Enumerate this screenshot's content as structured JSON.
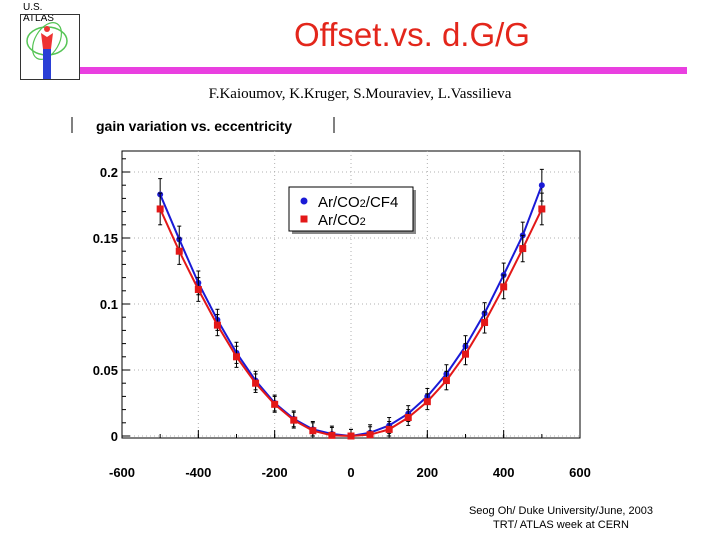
{
  "header": {
    "logo_text": "U.S. ATLAS",
    "title": "Offset.vs. d.G/G",
    "authors": "F.Kaioumov, K.Kruger, S.Mouraviev, L.Vassilieva"
  },
  "footer": {
    "line1": "Seog Oh/ Duke University/June, 2003",
    "line2": "TRT/ ATLAS week at CERN"
  },
  "colors": {
    "title": "#e3261b",
    "bar": "#e93fe0",
    "series1": "#1a1ad6",
    "series2": "#e31818"
  },
  "chart_data": {
    "type": "line",
    "title": "gain variation vs. eccentricity",
    "xlabel": "",
    "ylabel": "",
    "xlim": [
      -600,
      600
    ],
    "ylim": [
      0,
      0.22
    ],
    "x_ticks": [
      -600,
      -400,
      -200,
      0,
      200,
      400,
      600
    ],
    "x_tick_labels": [
      "-600",
      "-400",
      "-200",
      "0",
      "200",
      "400",
      "600"
    ],
    "y_ticks": [
      0,
      0.05,
      0.1,
      0.15,
      0.2
    ],
    "y_tick_labels": [
      "0",
      "0.05",
      "0.1",
      "0.15",
      "0.2"
    ],
    "grid": true,
    "legend_position": "top-right",
    "series": [
      {
        "name": "Ar/CO2/CF4",
        "legend_label": "Ar/CO",
        "legend_sub": "2",
        "legend_suffix": "/CF4",
        "marker": "circle",
        "x": [
          -500,
          -450,
          -400,
          -350,
          -300,
          -250,
          -200,
          -150,
          -100,
          -50,
          0,
          50,
          100,
          150,
          200,
          250,
          300,
          350,
          400,
          450,
          500
        ],
        "y": [
          0.183,
          0.149,
          0.116,
          0.088,
          0.063,
          0.042,
          0.025,
          0.013,
          0.005,
          0.0015,
          0.0,
          0.0025,
          0.008,
          0.017,
          0.03,
          0.047,
          0.068,
          0.093,
          0.122,
          0.152,
          0.19
        ],
        "err": [
          0.012,
          0.01,
          0.009,
          0.008,
          0.008,
          0.007,
          0.006,
          0.006,
          0.006,
          0.006,
          0.005,
          0.006,
          0.006,
          0.006,
          0.006,
          0.007,
          0.008,
          0.008,
          0.009,
          0.01,
          0.012
        ]
      },
      {
        "name": "Ar/CO2",
        "legend_label": "Ar/CO",
        "legend_sub": "2",
        "legend_suffix": "",
        "marker": "square",
        "x": [
          -500,
          -450,
          -400,
          -350,
          -300,
          -250,
          -200,
          -150,
          -100,
          -50,
          0,
          50,
          100,
          150,
          200,
          250,
          300,
          350,
          400,
          450,
          500
        ],
        "y": [
          0.172,
          0.14,
          0.111,
          0.084,
          0.06,
          0.04,
          0.024,
          0.012,
          0.004,
          0.0005,
          0.0,
          0.001,
          0.005,
          0.014,
          0.026,
          0.042,
          0.062,
          0.086,
          0.113,
          0.142,
          0.172
        ],
        "err": [
          0.012,
          0.01,
          0.009,
          0.008,
          0.008,
          0.007,
          0.006,
          0.006,
          0.006,
          0.006,
          0.005,
          0.006,
          0.006,
          0.006,
          0.006,
          0.007,
          0.008,
          0.008,
          0.009,
          0.01,
          0.012
        ]
      }
    ]
  }
}
